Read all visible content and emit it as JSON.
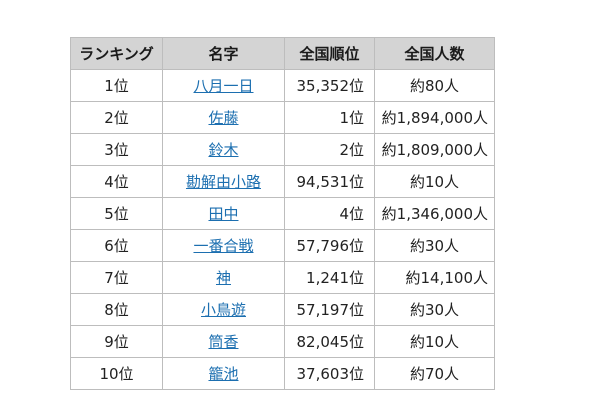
{
  "header": {
    "ranking": "ランキング",
    "name": "名字",
    "national_rank": "全国順位",
    "national_count": "全国人数"
  },
  "rows": [
    {
      "rank": "1位",
      "name": "八月一日",
      "national_rank": "35,352位",
      "count": "約80人"
    },
    {
      "rank": "2位",
      "name": "佐藤",
      "national_rank": "1位",
      "count": "約1,894,000人"
    },
    {
      "rank": "3位",
      "name": "鈴木",
      "national_rank": "2位",
      "count": "約1,809,000人"
    },
    {
      "rank": "4位",
      "name": "勘解由小路",
      "national_rank": "94,531位",
      "count": "約10人"
    },
    {
      "rank": "5位",
      "name": "田中",
      "national_rank": "4位",
      "count": "約1,346,000人"
    },
    {
      "rank": "6位",
      "name": "一番合戦",
      "national_rank": "57,796位",
      "count": "約30人"
    },
    {
      "rank": "7位",
      "name": "神",
      "national_rank": "1,241位",
      "count": "約14,100人"
    },
    {
      "rank": "8位",
      "name": "小鳥遊",
      "national_rank": "57,197位",
      "count": "約30人"
    },
    {
      "rank": "9位",
      "name": "筒香",
      "national_rank": "82,045位",
      "count": "約10人"
    },
    {
      "rank": "10位",
      "name": "籠池",
      "national_rank": "37,603位",
      "count": "約70人"
    }
  ],
  "colors": {
    "header_bg": "#d4d4d4",
    "border": "#bdbdbd",
    "link": "#1c6fb0",
    "text": "#222222"
  }
}
